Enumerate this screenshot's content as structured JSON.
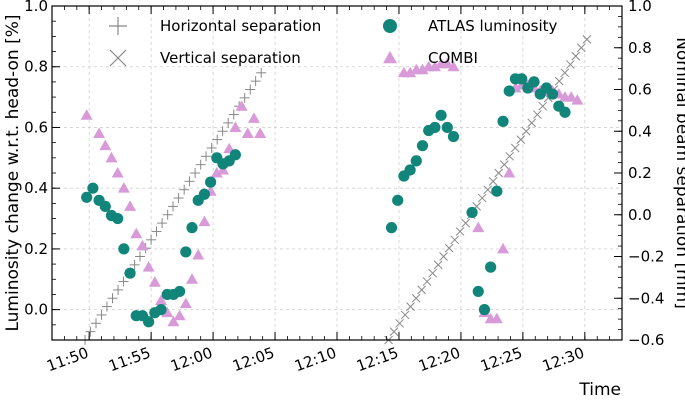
{
  "chart_data": {
    "type": "scatter",
    "title": "",
    "xlabel": "Time",
    "ylabel": "Luminosity change w.r.t. head-on [%]",
    "ylabel_right": "Nominal beam separation [mm]",
    "xlim": [
      "11:47",
      "12:33"
    ],
    "ylim": [
      -0.1,
      1.0
    ],
    "ylim_right": [
      -0.6,
      1.0
    ],
    "grid": true,
    "legend_position": "top",
    "x_ticks": [
      "11:50",
      "11:55",
      "12:00",
      "12:05",
      "12:10",
      "12:15",
      "12:20",
      "12:25",
      "12:30"
    ],
    "y_ticks": [
      "0.0",
      "0.2",
      "0.4",
      "0.6",
      "0.8",
      "1.0"
    ],
    "y_ticks_right": [
      "−0.6",
      "−0.4",
      "−0.2",
      "0.0",
      "0.2",
      "0.4",
      "0.6",
      "0.8",
      "1.0"
    ],
    "legend": [
      {
        "name": "Horizontal separation",
        "marker": "plus"
      },
      {
        "name": "Vertical separation",
        "marker": "cross"
      },
      {
        "name": "ATLAS luminosity",
        "marker": "circle"
      },
      {
        "name": "COMBI",
        "marker": "triangle"
      }
    ],
    "series": [
      {
        "name": "Horizontal separation",
        "axis": "right",
        "marker": "plus",
        "color": "#888888",
        "x": [
          "11:49:40",
          "11:50:06",
          "11:50:33",
          "11:51:00",
          "11:51:26",
          "11:51:53",
          "11:52:20",
          "11:52:46",
          "11:53:13",
          "11:53:40",
          "11:54:06",
          "11:54:33",
          "11:55:00",
          "11:55:26",
          "11:55:53",
          "11:56:20",
          "11:56:46",
          "11:57:13",
          "11:57:40",
          "11:58:06",
          "11:58:33",
          "11:59:00",
          "11:59:26",
          "11:59:53",
          "12:00:20",
          "12:00:46",
          "12:01:13",
          "12:01:40",
          "12:02:06",
          "12:02:33",
          "12:03:00",
          "12:03:26",
          "12:03:53"
        ],
        "values": [
          -0.6,
          -0.56,
          -0.52,
          -0.48,
          -0.44,
          -0.4,
          -0.36,
          -0.32,
          -0.28,
          -0.24,
          -0.2,
          -0.16,
          -0.12,
          -0.08,
          -0.04,
          0.0,
          0.04,
          0.08,
          0.12,
          0.16,
          0.2,
          0.24,
          0.28,
          0.32,
          0.36,
          0.4,
          0.44,
          0.48,
          0.52,
          0.56,
          0.6,
          0.64,
          0.68
        ]
      },
      {
        "name": "Vertical separation",
        "axis": "right",
        "marker": "cross",
        "color": "#888888",
        "x": [
          "12:14:10",
          "12:14:36",
          "12:15:03",
          "12:15:30",
          "12:15:56",
          "12:16:23",
          "12:16:50",
          "12:17:16",
          "12:17:43",
          "12:18:10",
          "12:18:36",
          "12:19:03",
          "12:19:30",
          "12:19:56",
          "12:20:23",
          "12:20:50",
          "12:21:16",
          "12:21:43",
          "12:22:10",
          "12:22:36",
          "12:23:03",
          "12:23:30",
          "12:23:56",
          "12:24:23",
          "12:24:50",
          "12:25:16",
          "12:25:43",
          "12:26:10",
          "12:26:36",
          "12:27:03",
          "12:27:30",
          "12:27:56",
          "12:28:23",
          "12:28:50",
          "12:29:16",
          "12:29:43",
          "12:30:10"
        ],
        "values": [
          -0.6,
          -0.56,
          -0.52,
          -0.48,
          -0.44,
          -0.4,
          -0.36,
          -0.32,
          -0.28,
          -0.24,
          -0.2,
          -0.16,
          -0.12,
          -0.08,
          -0.04,
          0.0,
          0.04,
          0.08,
          0.12,
          0.16,
          0.2,
          0.24,
          0.28,
          0.32,
          0.36,
          0.4,
          0.44,
          0.48,
          0.52,
          0.56,
          0.6,
          0.64,
          0.68,
          0.72,
          0.76,
          0.8,
          0.84
        ]
      },
      {
        "name": "ATLAS luminosity",
        "axis": "left",
        "marker": "circle",
        "color": "#12857a",
        "x": [
          "11:49:48",
          "11:50:18",
          "11:50:48",
          "11:51:18",
          "11:51:48",
          "11:52:18",
          "11:52:48",
          "11:53:18",
          "11:53:48",
          "11:54:18",
          "11:54:48",
          "11:55:18",
          "11:55:48",
          "11:56:18",
          "11:56:48",
          "11:57:18",
          "11:57:48",
          "11:58:18",
          "11:58:48",
          "11:59:18",
          "11:59:48",
          "12:00:18",
          "12:00:48",
          "12:01:18",
          "12:01:48",
          "12:02:18",
          "12:02:48",
          "12:03:18",
          "12:03:48",
          "12:14:24",
          "12:14:54",
          "12:15:24",
          "12:15:54",
          "12:16:24",
          "12:16:54",
          "12:17:24",
          "12:17:54",
          "12:18:24",
          "12:18:54",
          "12:19:24",
          "12:19:54",
          "12:20:24",
          "12:20:54",
          "12:21:24",
          "12:21:54",
          "12:22:24",
          "12:22:54",
          "12:23:24",
          "12:23:54",
          "12:24:24",
          "12:24:54",
          "12:25:24",
          "12:25:54",
          "12:26:24",
          "12:26:54",
          "12:27:24",
          "12:27:54",
          "12:28:24",
          "12:28:54",
          "12:29:24",
          "12:29:54"
        ],
        "values": [
          0.37,
          0.4,
          0.36,
          0.34,
          0.31,
          0.3,
          0.2,
          0.12,
          -0.02,
          -0.02,
          -0.04,
          -0.01,
          0.0,
          0.05,
          0.05,
          0.06,
          0.19,
          0.27,
          0.36,
          0.38,
          0.42,
          0.5,
          0.48,
          0.49,
          0.51,
          null,
          null,
          null,
          null,
          0.27,
          0.36,
          0.44,
          0.46,
          0.49,
          0.54,
          0.59,
          0.6,
          0.64,
          0.6,
          0.57,
          null,
          null,
          0.32,
          0.06,
          0.0,
          0.14,
          0.39,
          0.62,
          0.72,
          0.76,
          0.76,
          0.73,
          0.75,
          0.71,
          0.73,
          0.71,
          0.67,
          0.65,
          null,
          null,
          null
        ]
      },
      {
        "name": "COMBI",
        "axis": "left",
        "marker": "triangle",
        "color": "#d99ad9",
        "x": [
          "11:49:48",
          "11:50:48",
          "11:51:18",
          "11:51:48",
          "11:52:18",
          "11:52:48",
          "11:53:18",
          "11:53:48",
          "11:54:18",
          "11:54:48",
          "11:55:18",
          "11:55:48",
          "11:56:18",
          "11:56:48",
          "11:57:18",
          "11:57:48",
          "11:58:18",
          "11:58:48",
          "11:59:18",
          "11:59:48",
          "12:00:18",
          "12:00:48",
          "12:01:18",
          "12:01:48",
          "12:02:18",
          "12:02:48",
          "12:03:18",
          "12:03:48",
          "12:15:24",
          "12:15:54",
          "12:16:24",
          "12:16:54",
          "12:17:24",
          "12:17:54",
          "12:18:24",
          "12:18:54",
          "12:19:24",
          "12:21:24",
          "12:21:54",
          "12:22:24",
          "12:22:54",
          "12:23:24",
          "12:23:54",
          "12:24:24",
          "12:24:54",
          "12:25:24",
          "12:25:54",
          "12:26:24",
          "12:26:54",
          "12:27:24",
          "12:27:54",
          "12:28:24",
          "12:28:54",
          "12:29:24"
        ],
        "values": [
          0.64,
          0.58,
          0.54,
          0.5,
          0.45,
          0.4,
          0.34,
          0.25,
          0.21,
          0.14,
          0.09,
          0.03,
          -0.01,
          -0.04,
          -0.02,
          0.02,
          0.1,
          0.18,
          0.29,
          0.39,
          0.45,
          0.46,
          0.53,
          0.6,
          0.67,
          0.58,
          0.63,
          0.58,
          0.78,
          0.78,
          0.79,
          0.79,
          0.8,
          0.8,
          0.81,
          0.81,
          0.8,
          0.27,
          -0.01,
          -0.03,
          -0.03,
          0.2,
          0.45,
          0.73,
          0.74,
          0.74,
          0.73,
          0.72,
          0.72,
          0.72,
          0.71,
          0.7,
          0.7,
          0.69
        ]
      }
    ]
  }
}
